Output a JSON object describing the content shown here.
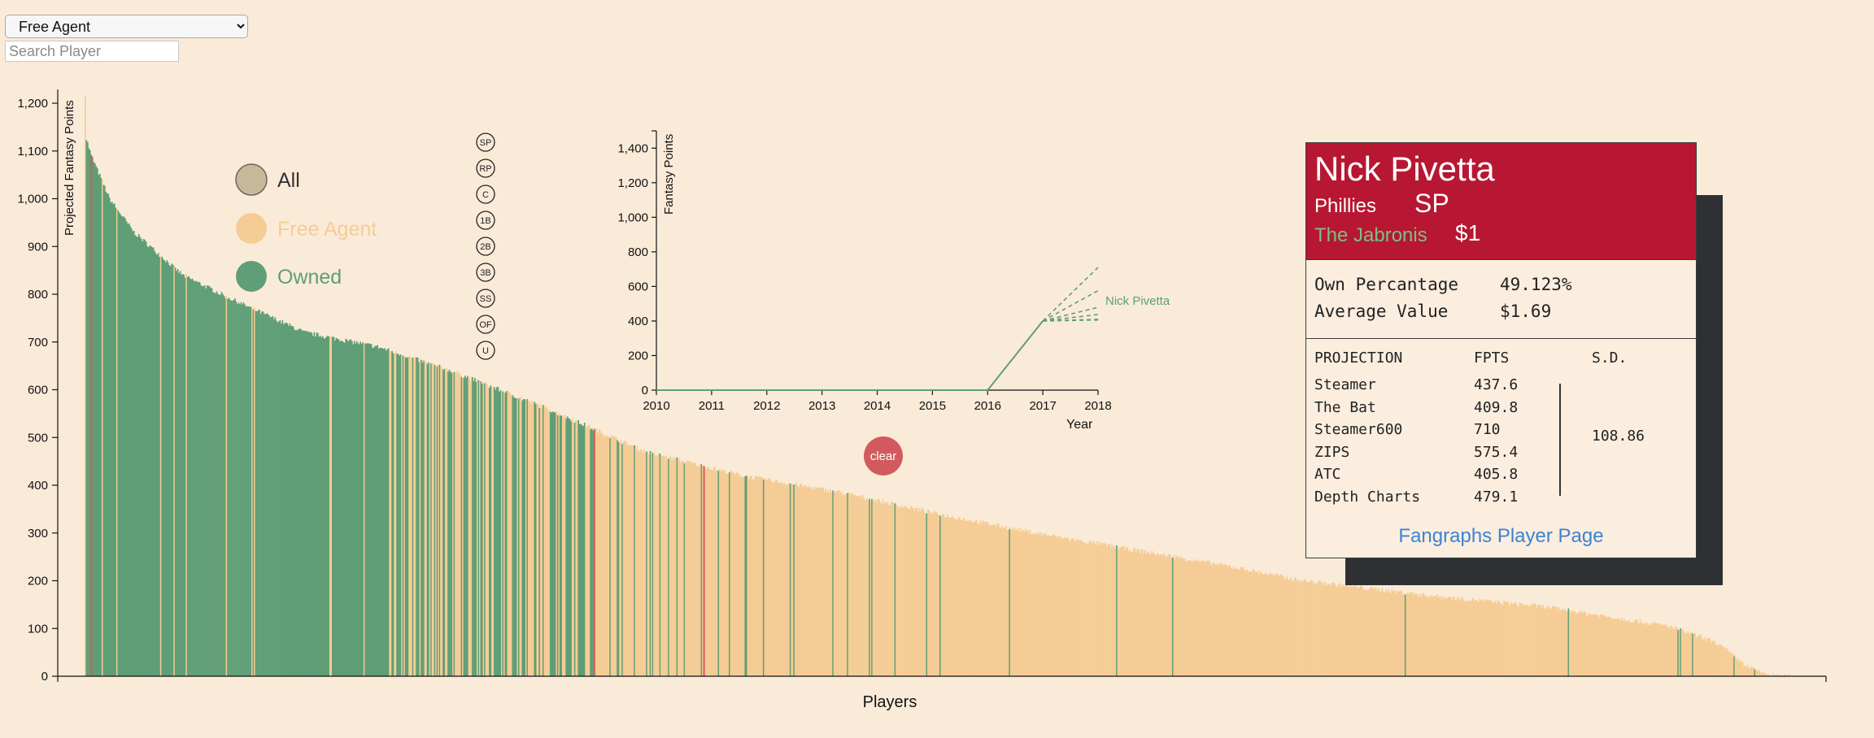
{
  "filter": {
    "selected": "Free Agent"
  },
  "search": {
    "placeholder": "Search Player"
  },
  "legend": {
    "items": [
      {
        "label": "All",
        "color": "#c8b89a",
        "text_color": "#333333"
      },
      {
        "label": "Free Agent",
        "color": "#f5cc95",
        "text_color": "#f5cc95"
      },
      {
        "label": "Owned",
        "color": "#5f9e76",
        "text_color": "#5f9e76"
      }
    ]
  },
  "positions": [
    "SP",
    "RP",
    "C",
    "1B",
    "2B",
    "3B",
    "SS",
    "OF",
    "U"
  ],
  "clear_label": "clear",
  "colors": {
    "owned": "#5f9e76",
    "free_agent": "#f5cc95",
    "highlight": "#d25a5e",
    "card_header": "#b71732"
  },
  "player_card": {
    "name": "Nick Pivetta",
    "team": "Phillies",
    "position": "SP",
    "owner": "The Jabronis",
    "price": "$1",
    "own_label": "Own Percantage",
    "own_value": "49.123%",
    "avg_label": "Average Value",
    "avg_value": "$1.69",
    "proj_header": "PROJECTION",
    "fpts_header": "FPTS",
    "sd_header": "S.D.",
    "sd_value": "108.86",
    "projections": [
      {
        "name": "Steamer",
        "fpts": "437.6"
      },
      {
        "name": "The Bat",
        "fpts": "409.8"
      },
      {
        "name": "Steamer600",
        "fpts": "710"
      },
      {
        "name": "ZIPS",
        "fpts": "575.4"
      },
      {
        "name": "ATC",
        "fpts": "405.8"
      },
      {
        "name": "Depth Charts",
        "fpts": "479.1"
      }
    ],
    "link_label": "Fangraphs Player Page"
  },
  "chart_data": [
    {
      "type": "bar",
      "xlabel": "Players",
      "ylabel": "Projected Fantasy Points",
      "ylim": [
        0,
        1200
      ],
      "yticks": [
        0,
        100,
        200,
        300,
        400,
        500,
        600,
        700,
        800,
        900,
        1000,
        1100,
        1200
      ],
      "ytick_labels": [
        "0",
        "100",
        "200",
        "300",
        "400",
        "500",
        "600",
        "700",
        "800",
        "900",
        "1,000",
        "1,100",
        "1,200"
      ],
      "n_players": 1400,
      "series": [
        {
          "name": "Owned",
          "color": "#5f9e76"
        },
        {
          "name": "Free Agent",
          "color": "#f5cc95"
        }
      ],
      "curve": {
        "rank": [
          0,
          1,
          5,
          20,
          40,
          80,
          120,
          180,
          240,
          300,
          380,
          460,
          540,
          620,
          700,
          780,
          860,
          940,
          1000,
          1100,
          1200,
          1300,
          1340,
          1365,
          1380,
          1390,
          1400
        ],
        "points": [
          1220,
          1125,
          1090,
          1000,
          930,
          840,
          790,
          720,
          690,
          640,
          560,
          470,
          420,
          385,
          340,
          300,
          265,
          230,
          200,
          170,
          145,
          105,
          70,
          20,
          5,
          0,
          0
        ]
      },
      "owned_fraction_by_rank": [
        {
          "upto": 40,
          "owned": 0.9
        },
        {
          "upto": 250,
          "owned": 0.95
        },
        {
          "upto": 420,
          "owned": 0.55
        },
        {
          "upto": 650,
          "owned": 0.1
        },
        {
          "upto": 1400,
          "owned": 0.02
        }
      ]
    },
    {
      "type": "line",
      "xlabel": "Year",
      "ylabel": "Fantasy Points",
      "x": [
        2010,
        2011,
        2012,
        2013,
        2014,
        2015,
        2016,
        2017,
        2018
      ],
      "xlim": [
        2010,
        2018
      ],
      "ylim": [
        0,
        1500
      ],
      "yticks": [
        0,
        200,
        400,
        600,
        800,
        1000,
        1200,
        1400
      ],
      "ytick_labels": [
        "0",
        "200",
        "400",
        "600",
        "800",
        "1,000",
        "1,200",
        "1,400"
      ],
      "series": [
        {
          "name": "Nick Pivetta",
          "x": [
            2010,
            2011,
            2012,
            2013,
            2014,
            2015,
            2016,
            2017
          ],
          "values": [
            0,
            0,
            0,
            0,
            0,
            0,
            0,
            400
          ]
        }
      ],
      "projections": {
        "from": [
          2017,
          400
        ],
        "x": 2018,
        "values": [
          437.6,
          409.8,
          710,
          575.4,
          405.8,
          479.1
        ]
      }
    }
  ]
}
